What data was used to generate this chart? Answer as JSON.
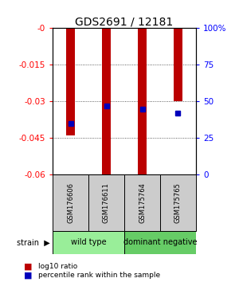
{
  "title": "GDS2691 / 12181",
  "samples": [
    "GSM176606",
    "GSM176611",
    "GSM175764",
    "GSM175765"
  ],
  "log10_ratio": [
    -0.044,
    -0.06,
    -0.06,
    -0.03
  ],
  "percentile_rank": [
    35,
    47,
    45,
    42
  ],
  "ylim_left": [
    -0.06,
    0
  ],
  "ylim_right": [
    0,
    100
  ],
  "yticks_left": [
    0,
    -0.015,
    -0.03,
    -0.045,
    -0.06
  ],
  "ytick_labels_left": [
    "-0",
    "-0.015",
    "-0.03",
    "-0.045",
    "-0.06"
  ],
  "yticks_right": [
    0,
    25,
    50,
    75,
    100
  ],
  "ytick_labels_right": [
    "0",
    "25",
    "50",
    "75",
    "100%"
  ],
  "bar_color": "#bb0000",
  "dot_color": "#0000bb",
  "strain_groups": [
    {
      "label": "wild type",
      "samples": [
        0,
        1
      ],
      "color": "#99ee99"
    },
    {
      "label": "dominant negative",
      "samples": [
        2,
        3
      ],
      "color": "#66cc66"
    }
  ],
  "strain_label": "strain",
  "legend_bar_label": "log10 ratio",
  "legend_dot_label": "percentile rank within the sample",
  "sample_box_color": "#cccccc",
  "grid_color": "#333333",
  "bar_width": 0.25
}
